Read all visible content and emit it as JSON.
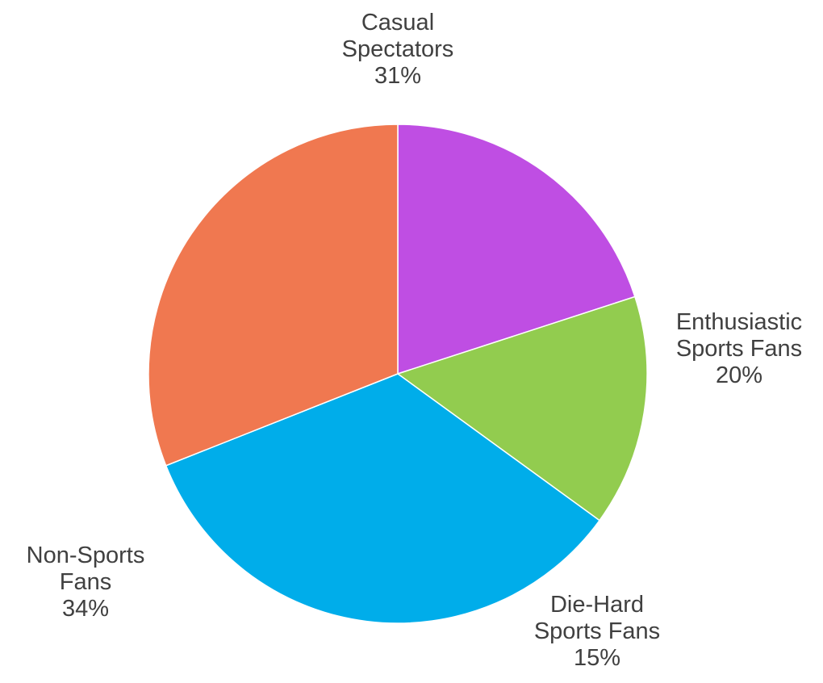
{
  "chart_data": {
    "type": "pie",
    "slices": [
      {
        "name": "Enthusiastic Sports Fans",
        "label_lines": [
          "Enthusiastic",
          "Sports Fans"
        ],
        "value": 20,
        "value_label": "20%",
        "color": "#bf4ee3"
      },
      {
        "name": "Die-Hard Sports Fans",
        "label_lines": [
          "Die-Hard",
          "Sports Fans"
        ],
        "value": 15,
        "value_label": "15%",
        "color": "#92cc4f"
      },
      {
        "name": "Non-Sports Fans",
        "label_lines": [
          "Non-Sports",
          "Fans"
        ],
        "value": 34,
        "value_label": "34%",
        "color": "#00adea"
      },
      {
        "name": "Casual Spectators",
        "label_lines": [
          "Casual",
          "Spectators"
        ],
        "value": 31,
        "value_label": "31%",
        "color": "#f07850"
      }
    ],
    "start": "12 o'clock",
    "direction": "clockwise",
    "legend": "none",
    "labels": "outside"
  }
}
